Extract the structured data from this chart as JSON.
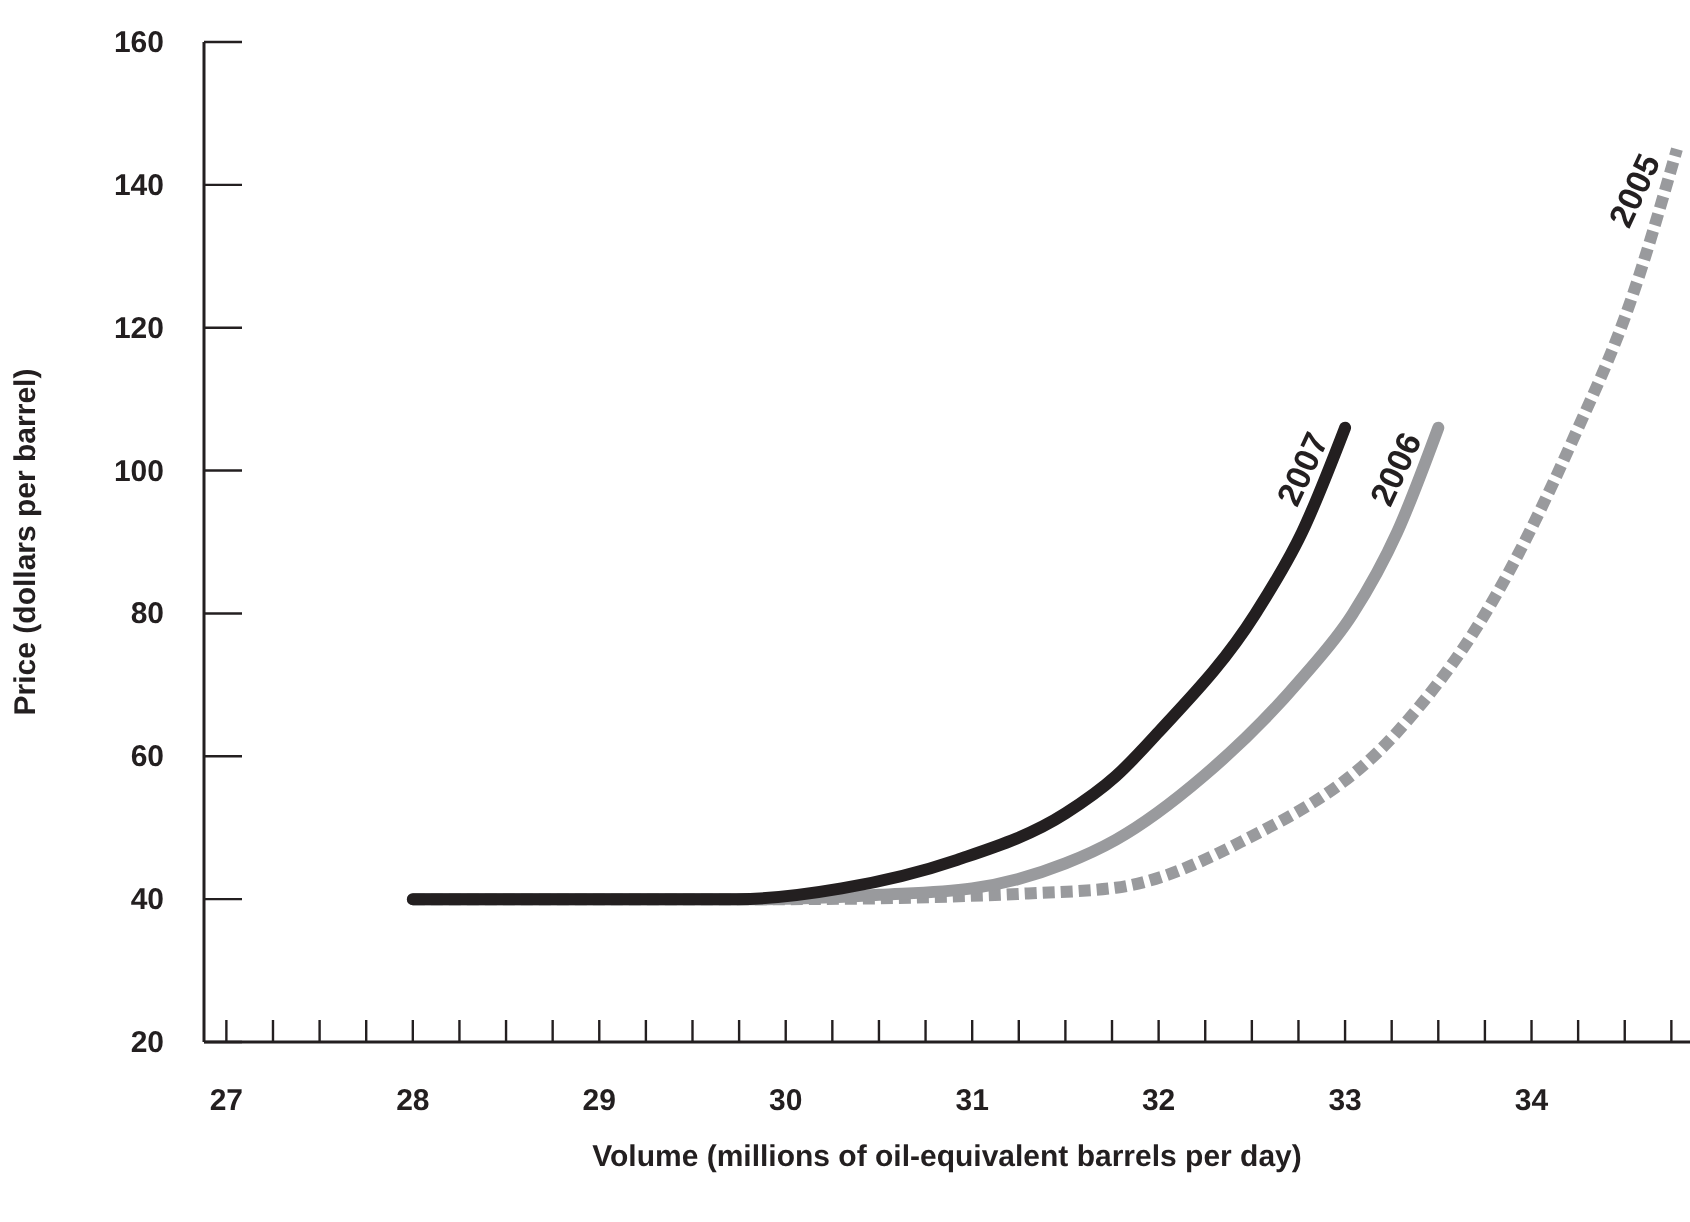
{
  "chart_data": {
    "type": "line",
    "xlabel": "Volume (millions of oil-equivalent barrels per day)",
    "ylabel": "Price (dollars per barrel)",
    "xlim": [
      26.88,
      34.85
    ],
    "ylim": [
      20,
      160
    ],
    "xticks": [
      27,
      {
        "value": 27.25,
        "label": null
      },
      {
        "value": 27.5,
        "label": null
      },
      {
        "value": 27.75,
        "label": null
      },
      28,
      {
        "value": 28.25,
        "label": null
      },
      {
        "value": 28.5,
        "label": null
      },
      {
        "value": 28.75,
        "label": null
      },
      29,
      {
        "value": 29.25,
        "label": null
      },
      {
        "value": 29.5,
        "label": null
      },
      {
        "value": 29.75,
        "label": null
      },
      30,
      {
        "value": 30.25,
        "label": null
      },
      {
        "value": 30.5,
        "label": null
      },
      {
        "value": 30.75,
        "label": null
      },
      31,
      {
        "value": 31.25,
        "label": null
      },
      {
        "value": 31.5,
        "label": null
      },
      {
        "value": 31.75,
        "label": null
      },
      32,
      {
        "value": 32.25,
        "label": null
      },
      {
        "value": 32.5,
        "label": null
      },
      {
        "value": 32.75,
        "label": null
      },
      33,
      {
        "value": 33.25,
        "label": null
      },
      {
        "value": 33.5,
        "label": null
      },
      {
        "value": 33.75,
        "label": null
      },
      34,
      {
        "value": 34.25,
        "label": null
      },
      {
        "value": 34.5,
        "label": null
      },
      {
        "value": 34.75,
        "label": null
      }
    ],
    "yticks": [
      20,
      40,
      60,
      80,
      100,
      120,
      140,
      160
    ],
    "grid": false,
    "legend": false,
    "marker": "none",
    "series": [
      {
        "name": "2005",
        "color": "#999a9d",
        "line_style": "dashed",
        "x": [
          28,
          29,
          30,
          30.8,
          31.3,
          31.77,
          32.44,
          33.28,
          33.75,
          34.23,
          34.53,
          34.78
        ],
        "values": [
          40,
          40,
          40,
          40.3,
          40.8,
          41.6,
          48,
          63.4,
          79.9,
          104.8,
          123.6,
          145
        ]
      },
      {
        "name": "2006",
        "color": "#999a9d",
        "line_style": "solid",
        "x": [
          28,
          29,
          29.9,
          30.5,
          31,
          31.5,
          31.77,
          32.24,
          32.76,
          33.04,
          33.28,
          33.5
        ],
        "values": [
          40,
          40,
          40,
          40.6,
          41.5,
          45,
          48.3,
          57.2,
          70.7,
          79.9,
          91.4,
          106
        ]
      },
      {
        "name": "2007",
        "color": "#231f20",
        "line_style": "solid",
        "x": [
          28,
          29,
          29.74,
          30.3,
          30.92,
          31.5,
          31.77,
          32,
          32.52,
          32.77,
          33
        ],
        "values": [
          40,
          40,
          40,
          41.5,
          45.5,
          52,
          57.2,
          63.4,
          80,
          91.4,
          106
        ]
      }
    ]
  }
}
